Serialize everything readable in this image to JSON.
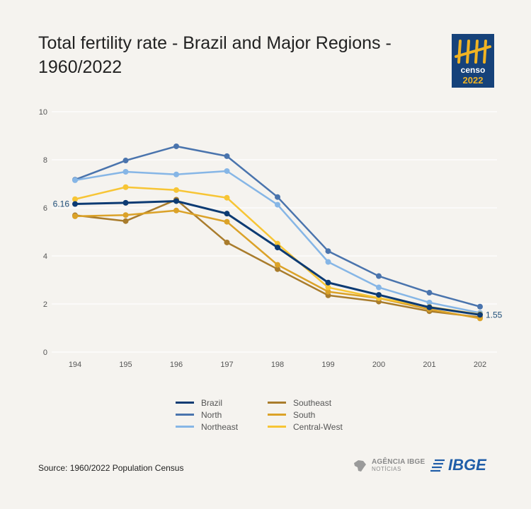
{
  "header": {
    "title": "Total fertility rate - Brazil and Major Regions - 1960/2022",
    "logo_top": "censo",
    "logo_bottom": "2022"
  },
  "colors": {
    "background": "#f5f3ef",
    "logo_bg": "#16427a",
    "logo_accent": "#f0b323",
    "grid": "#ffffff",
    "tick_text": "#555555",
    "label_text": "#1f4e79"
  },
  "chart_data": {
    "type": "line",
    "title": "Total fertility rate - Brazil and Major Regions - 1960/2022",
    "xlabel": "",
    "ylabel": "",
    "categories": [
      "194",
      "195",
      "196",
      "197",
      "198",
      "199",
      "200",
      "201",
      "202"
    ],
    "ylim": [
      0,
      10
    ],
    "yticks": [
      0,
      2,
      4,
      6,
      8,
      10
    ],
    "grid": true,
    "legend_position": "bottom",
    "series": [
      {
        "name": "Brazil",
        "color": "#0d3b73",
        "values": [
          6.16,
          6.21,
          6.28,
          5.76,
          4.35,
          2.89,
          2.38,
          1.86,
          1.55
        ],
        "stroke": 3
      },
      {
        "name": "North",
        "color": "#4a74ad",
        "values": [
          7.17,
          7.97,
          8.56,
          8.15,
          6.45,
          4.2,
          3.16,
          2.47,
          1.89
        ],
        "stroke": 2.5
      },
      {
        "name": "Northeast",
        "color": "#86b6e6",
        "values": [
          7.15,
          7.5,
          7.39,
          7.53,
          6.13,
          3.75,
          2.69,
          2.06,
          1.63
        ],
        "stroke": 2.5
      },
      {
        "name": "Southeast",
        "color": "#a97c2c",
        "values": [
          5.69,
          5.45,
          6.34,
          4.56,
          3.45,
          2.36,
          2.1,
          1.7,
          1.45
        ],
        "stroke": 2.5
      },
      {
        "name": "South",
        "color": "#dba228",
        "values": [
          5.65,
          5.7,
          5.89,
          5.42,
          3.63,
          2.51,
          2.24,
          1.78,
          1.4
        ],
        "stroke": 2.5
      },
      {
        "name": "Central-West",
        "color": "#f7c535",
        "values": [
          6.36,
          6.86,
          6.74,
          6.42,
          4.51,
          2.69,
          2.25,
          1.88,
          1.57
        ],
        "stroke": 2.5
      }
    ],
    "annotations": [
      {
        "text": "6.16",
        "series": "Brazil",
        "index": 0,
        "side": "left"
      },
      {
        "text": "1.55",
        "series": "Brazil",
        "index": 8,
        "side": "right"
      }
    ]
  },
  "footer": {
    "source": "Source: 1960/2022 Population Census",
    "agencia_top": "AGÊNCIA IBGE",
    "agencia_bottom": "NOTÍCIAS",
    "ibge": "IBGE"
  }
}
